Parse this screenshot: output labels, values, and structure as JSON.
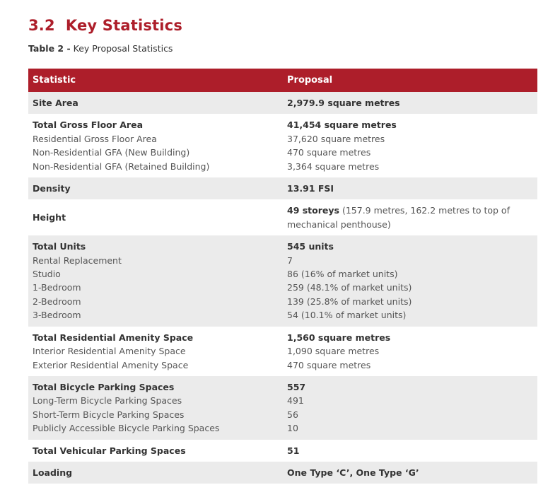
{
  "section": {
    "number": "3.2",
    "title": "Key Statistics"
  },
  "caption": {
    "label": "Table 2 -",
    "text": "Key Proposal Statistics"
  },
  "table": {
    "headers": [
      "Statistic",
      "Proposal"
    ],
    "colors": {
      "header_bg": "#ad1e2a",
      "row_alt_bg": "#ebebeb"
    },
    "rows": [
      {
        "label": "Site Area",
        "value": "2,979.9 square metres",
        "subs": []
      },
      {
        "label": "Total Gross Floor Area",
        "value": "41,454 square metres",
        "subs": [
          {
            "label": "Residential Gross Floor Area",
            "value": "37,620 square metres"
          },
          {
            "label": "Non-Residential GFA (New Building)",
            "value": "470 square metres"
          },
          {
            "label": "Non-Residential GFA (Retained Building)",
            "value": "3,364 square metres"
          }
        ]
      },
      {
        "label": "Density",
        "value": "13.91 FSI",
        "subs": []
      },
      {
        "label": "Height",
        "value": "49 storeys",
        "value_note": "(157.9 metres, 162.2 metres to top of mechanical penthouse)",
        "subs": []
      },
      {
        "label": "Total Units",
        "value": "545 units",
        "subs": [
          {
            "label": "Rental Replacement",
            "value": "7"
          },
          {
            "label": "Studio",
            "value": "86 (16% of market units)"
          },
          {
            "label": "1-Bedroom",
            "value": "259 (48.1% of market units)"
          },
          {
            "label": "2-Bedroom",
            "value": "139 (25.8% of market units)"
          },
          {
            "label": "3-Bedroom",
            "value": "54 (10.1% of market units)"
          }
        ]
      },
      {
        "label": "Total Residential Amenity Space",
        "value": "1,560 square metres",
        "subs": [
          {
            "label": "Interior Residential Amenity Space",
            "value": "1,090 square metres"
          },
          {
            "label": "Exterior Residential Amenity Space",
            "value": "470 square metres"
          }
        ]
      },
      {
        "label": "Total Bicycle Parking Spaces",
        "value": "557",
        "subs": [
          {
            "label": "Long-Term Bicycle Parking Spaces",
            "value": "491"
          },
          {
            "label": "Short-Term Bicycle Parking Spaces",
            "value": "56"
          },
          {
            "label": "Publicly Accessible Bicycle Parking Spaces",
            "value": "10"
          }
        ]
      },
      {
        "label": "Total Vehicular Parking Spaces",
        "value": "51",
        "subs": []
      },
      {
        "label": "Loading",
        "value": "One Type ‘C’, One Type ‘G’",
        "subs": []
      }
    ]
  }
}
